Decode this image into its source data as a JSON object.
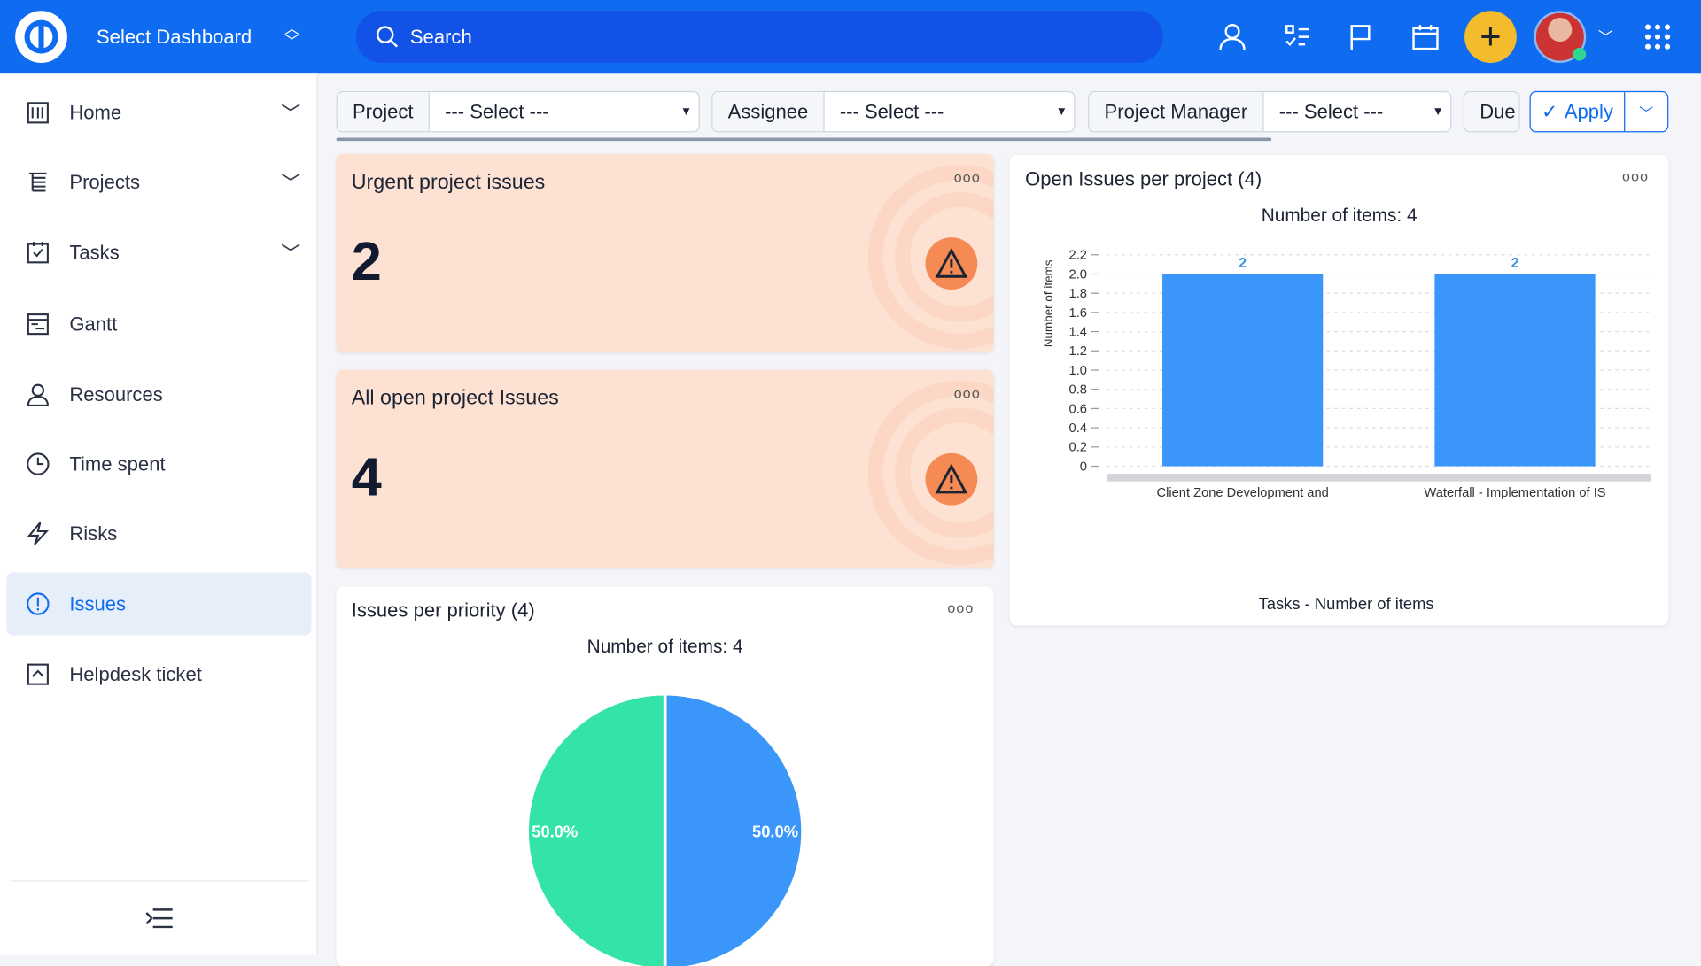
{
  "header": {
    "dashboard_label": "Select Dashboard",
    "search_placeholder": "Search",
    "brand_color": "#0f6bf0"
  },
  "sidebar": {
    "items": [
      {
        "label": "Home",
        "icon": "dashboard-icon",
        "expandable": true
      },
      {
        "label": "Projects",
        "icon": "projects-icon",
        "expandable": true
      },
      {
        "label": "Tasks",
        "icon": "tasks-icon",
        "expandable": true
      },
      {
        "label": "Gantt",
        "icon": "gantt-icon",
        "expandable": false
      },
      {
        "label": "Resources",
        "icon": "user-icon",
        "expandable": false
      },
      {
        "label": "Time spent",
        "icon": "clock-icon",
        "expandable": false
      },
      {
        "label": "Risks",
        "icon": "lightning-icon",
        "expandable": false
      },
      {
        "label": "Issues",
        "icon": "exclamation-icon",
        "expandable": false,
        "active": true
      },
      {
        "label": "Helpdesk ticket",
        "icon": "ticket-icon",
        "expandable": false
      }
    ]
  },
  "filters": {
    "project": {
      "label": "Project",
      "value": "--- Select ---"
    },
    "assignee": {
      "label": "Assignee",
      "value": "--- Select ---"
    },
    "manager": {
      "label": "Project Manager",
      "value": "--- Select ---"
    },
    "due": {
      "label": "Due"
    },
    "apply": "Apply"
  },
  "widgets": {
    "urgent": {
      "title": "Urgent project issues",
      "value": "2"
    },
    "open": {
      "title": "All open project Issues",
      "value": "4"
    },
    "priority": {
      "title": "Issues per priority (4)",
      "subtitle": "Number of items: 4"
    },
    "per_project": {
      "title": "Open Issues per project (4)"
    }
  },
  "chart_data": [
    {
      "type": "pie",
      "title": "Number of items: 4",
      "slices": [
        {
          "value": 50.0,
          "label": "50.0%",
          "color": "#3a96f8"
        },
        {
          "value": 50.0,
          "label": "50.0%",
          "color": "#34e3a8"
        }
      ]
    },
    {
      "type": "bar",
      "title": "Number of items: 4",
      "categories": [
        "Client Zone Development and",
        "Waterfall - Implementation of IS"
      ],
      "values": [
        2,
        2
      ],
      "data_labels": [
        "2",
        "2"
      ],
      "ylabel": "Number of items",
      "xlabel": "Tasks - Number of items",
      "ylim": [
        0,
        2.2
      ],
      "yticks": [
        "0",
        "0.2",
        "0.4",
        "0.6",
        "0.8",
        "1.0",
        "1.2",
        "1.4",
        "1.6",
        "1.8",
        "2.0",
        "2.2"
      ],
      "grid": true,
      "color": "#3a96f8"
    }
  ]
}
